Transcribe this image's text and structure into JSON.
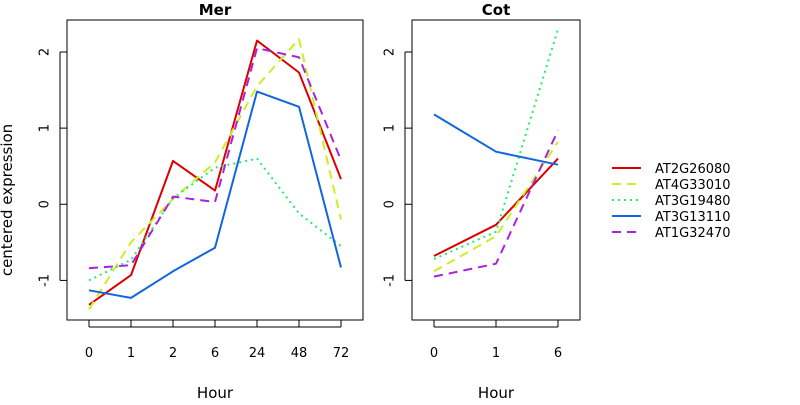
{
  "chart_data": {
    "type": "line",
    "ylabel": "centered expression",
    "legend_position": "right",
    "series_styles": [
      {
        "name": "AT2G26080",
        "color": "#dd0000",
        "dash": "solid"
      },
      {
        "name": "AT4G33010",
        "color": "#ccee22",
        "dash": "dashed"
      },
      {
        "name": "AT3G19480",
        "color": "#22ee66",
        "dash": "dotted"
      },
      {
        "name": "AT3G13110",
        "color": "#1166dd",
        "dash": "solid"
      },
      {
        "name": "AT1G32470",
        "color": "#aa22dd",
        "dash": "dashed"
      }
    ],
    "panels": [
      {
        "title": "Mer",
        "xlabel": "Hour",
        "categories": [
          "0",
          "1",
          "2",
          "6",
          "24",
          "48",
          "72"
        ],
        "yticks": [
          "-1",
          "0",
          "1",
          "2"
        ],
        "ylim": [
          -1.52,
          2.42
        ],
        "series": [
          {
            "name": "AT2G26080",
            "values": [
              -1.32,
              -0.93,
              0.57,
              0.18,
              2.15,
              1.73,
              0.33
            ]
          },
          {
            "name": "AT4G33010",
            "values": [
              -1.38,
              -0.5,
              0.07,
              0.55,
              1.55,
              2.17,
              -0.2
            ]
          },
          {
            "name": "AT3G19480",
            "values": [
              -1.0,
              -0.73,
              0.08,
              0.48,
              0.6,
              -0.12,
              -0.55
            ]
          },
          {
            "name": "AT3G13110",
            "values": [
              -1.13,
              -1.23,
              -0.88,
              -0.57,
              1.48,
              1.28,
              -0.83
            ]
          },
          {
            "name": "AT1G32470",
            "values": [
              -0.84,
              -0.8,
              0.1,
              0.03,
              2.05,
              1.93,
              0.58
            ]
          }
        ]
      },
      {
        "title": "Cot",
        "xlabel": "Hour",
        "categories": [
          "0",
          "1",
          "6"
        ],
        "yticks": [
          "-1",
          "0",
          "1",
          "2"
        ],
        "ylim": [
          -1.52,
          2.42
        ],
        "series": [
          {
            "name": "AT2G26080",
            "values": [
              -0.68,
              -0.27,
              0.6
            ]
          },
          {
            "name": "AT4G33010",
            "values": [
              -0.88,
              -0.42,
              0.82
            ]
          },
          {
            "name": "AT3G19480",
            "values": [
              -0.72,
              -0.36,
              2.3
            ]
          },
          {
            "name": "AT3G13110",
            "values": [
              1.18,
              0.69,
              0.52
            ]
          },
          {
            "name": "AT1G32470",
            "values": [
              -0.95,
              -0.78,
              0.97
            ]
          }
        ]
      }
    ]
  }
}
